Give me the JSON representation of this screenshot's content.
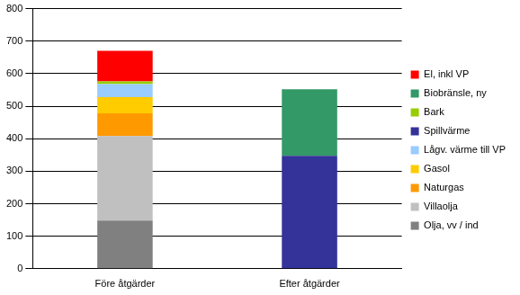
{
  "chart_data": {
    "type": "bar",
    "stacked": true,
    "grid": true,
    "legend": "right",
    "categories": [
      "Före åtgärder",
      "Efter åtgärder"
    ],
    "series": [
      {
        "name": "Olja, vv / ind",
        "color": "#808080",
        "values": [
          148,
          0
        ]
      },
      {
        "name": "Villaolja",
        "color": "#c0c0c0",
        "values": [
          260,
          0
        ]
      },
      {
        "name": "Naturgas",
        "color": "#ff9900",
        "values": [
          70,
          0
        ]
      },
      {
        "name": "Gasol",
        "color": "#ffcc00",
        "values": [
          50,
          0
        ]
      },
      {
        "name": "Lågv. värme till VP",
        "color": "#99ccff",
        "values": [
          40,
          0
        ]
      },
      {
        "name": "Spillvärme",
        "color": "#333399",
        "values": [
          0,
          347
        ]
      },
      {
        "name": "Bark",
        "color": "#99cc00",
        "values": [
          8,
          0
        ]
      },
      {
        "name": "Biobränsle, ny",
        "color": "#339966",
        "values": [
          0,
          205
        ]
      },
      {
        "name": "El, inkl VP",
        "color": "#ff0000",
        "values": [
          94,
          0
        ]
      }
    ],
    "ylim": [
      0,
      800
    ],
    "yticks": [
      0,
      100,
      200,
      300,
      400,
      500,
      600,
      700,
      800
    ]
  }
}
